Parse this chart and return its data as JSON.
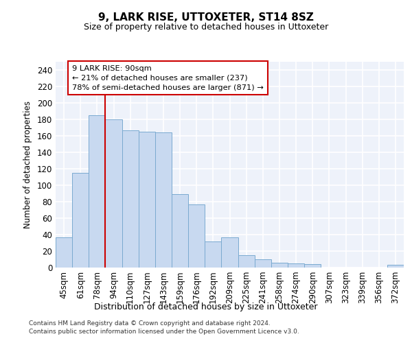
{
  "title1": "9, LARK RISE, UTTOXETER, ST14 8SZ",
  "title2": "Size of property relative to detached houses in Uttoxeter",
  "xlabel": "Distribution of detached houses by size in Uttoxeter",
  "ylabel": "Number of detached properties",
  "categories": [
    "45sqm",
    "61sqm",
    "78sqm",
    "94sqm",
    "110sqm",
    "127sqm",
    "143sqm",
    "159sqm",
    "176sqm",
    "192sqm",
    "209sqm",
    "225sqm",
    "241sqm",
    "258sqm",
    "274sqm",
    "290sqm",
    "307sqm",
    "323sqm",
    "339sqm",
    "356sqm",
    "372sqm"
  ],
  "bar_heights": [
    37,
    115,
    185,
    180,
    167,
    165,
    164,
    89,
    77,
    32,
    37,
    15,
    10,
    6,
    5,
    4,
    0,
    0,
    0,
    0,
    3
  ],
  "bar_color": "#c8d9f0",
  "bar_edge_color": "#7aaad0",
  "vline_position": 3.0,
  "vline_color": "#cc0000",
  "annotation_text": "9 LARK RISE: 90sqm\n← 21% of detached houses are smaller (237)\n78% of semi-detached houses are larger (871) →",
  "ylim": [
    0,
    250
  ],
  "yticks": [
    0,
    20,
    40,
    60,
    80,
    100,
    120,
    140,
    160,
    180,
    200,
    220,
    240
  ],
  "bg_color": "#eef2fa",
  "grid_color": "#ffffff",
  "footer1": "Contains HM Land Registry data © Crown copyright and database right 2024.",
  "footer2": "Contains public sector information licensed under the Open Government Licence v3.0."
}
